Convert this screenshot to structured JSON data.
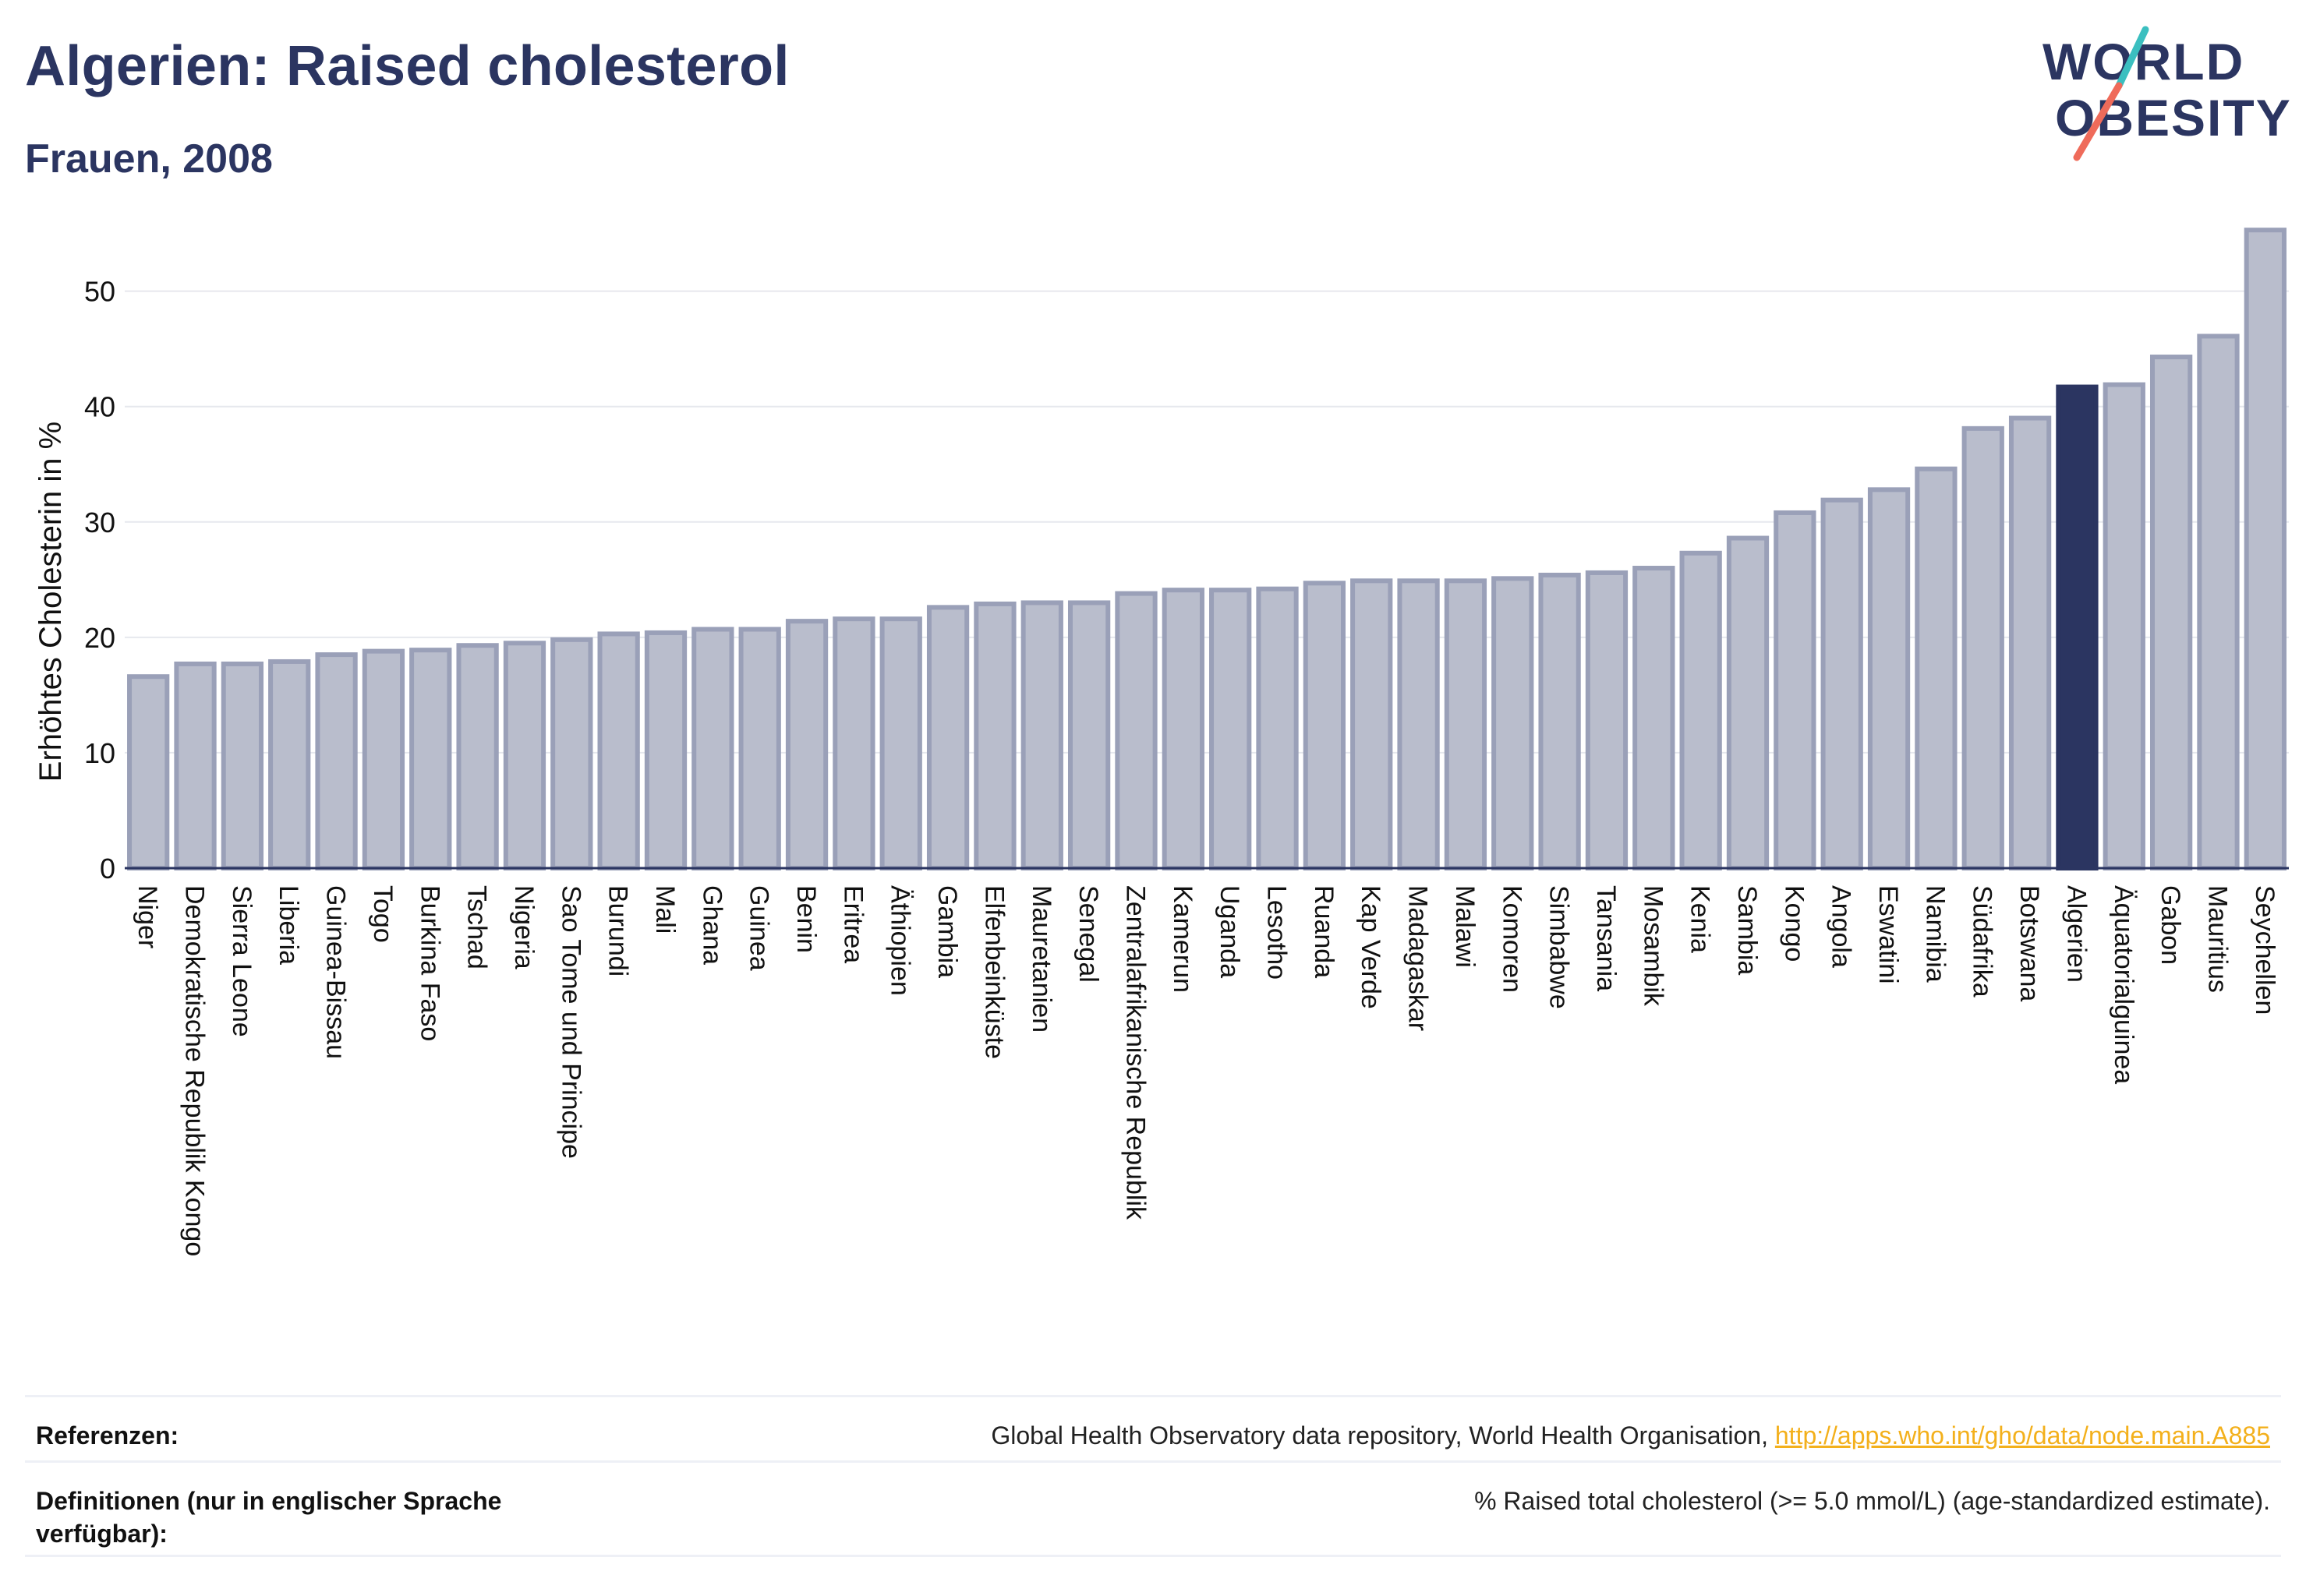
{
  "header": {
    "title": "Algerien: Raised cholesterol",
    "subtitle": "Frauen, 2008"
  },
  "logo": {
    "line1": "WORLD",
    "line2": "OBESITY"
  },
  "chart_data": {
    "type": "bar",
    "ylabel": "Erhöhtes Cholesterin in %",
    "ylim": [
      0,
      57
    ],
    "yticks": [
      0,
      10,
      20,
      30,
      40,
      50
    ],
    "grid": true,
    "highlight": "Algerien",
    "colors": {
      "bar": "#b9bdcc",
      "bar_border": "#9aa0b8",
      "highlight": "#2b3561",
      "grid": "#e6e8ee"
    },
    "categories": [
      "Niger",
      "Demokratische Republik Kongo",
      "Sierra Leone",
      "Liberia",
      "Guinea-Bissau",
      "Togo",
      "Burkina Faso",
      "Tschad",
      "Nigeria",
      "Sao Tome und Principe",
      "Burundi",
      "Mali",
      "Ghana",
      "Guinea",
      "Benin",
      "Eritrea",
      "Äthiopien",
      "Gambia",
      "Elfenbeinküste",
      "Mauretanien",
      "Senegal",
      "Zentralafrikanische Republik",
      "Kamerun",
      "Uganda",
      "Lesotho",
      "Ruanda",
      "Kap Verde",
      "Madagaskar",
      "Malawi",
      "Komoren",
      "Simbabwe",
      "Tansania",
      "Mosambik",
      "Kenia",
      "Sambia",
      "Kongo",
      "Angola",
      "Eswatini",
      "Namibia",
      "Südafrika",
      "Botswana",
      "Algerien",
      "Äquatorialguinea",
      "Gabon",
      "Mauritius",
      "Seychellen"
    ],
    "values": [
      16.6,
      17.7,
      17.7,
      17.9,
      18.5,
      18.8,
      18.9,
      19.3,
      19.5,
      19.8,
      20.3,
      20.4,
      20.7,
      20.7,
      21.4,
      21.6,
      21.6,
      22.6,
      22.9,
      23.0,
      23.0,
      23.8,
      24.1,
      24.1,
      24.2,
      24.7,
      24.9,
      24.9,
      24.9,
      25.1,
      25.4,
      25.6,
      26.0,
      27.3,
      28.6,
      30.8,
      31.9,
      32.8,
      34.6,
      38.1,
      39.0,
      41.7,
      41.9,
      44.3,
      46.1,
      55.3
    ]
  },
  "footer": {
    "references_label": "Referenzen:",
    "references_text": "Global Health Observatory data repository, World Health Organisation, ",
    "references_link": "http://apps.who.int/gho/data/node.main.A885",
    "definitions_label": "Definitionen (nur in englischer Sprache verfügbar):",
    "definitions_text": "% Raised total cholesterol (>= 5.0 mmol/L) (age-standardized estimate)."
  }
}
